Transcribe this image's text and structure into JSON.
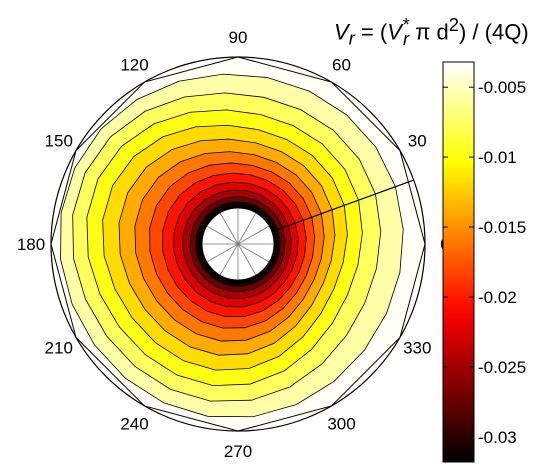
{
  "chart_data": {
    "type": "polar-contour",
    "title": {
      "lhs": "V",
      "lhs_sub": "r",
      "eq": " = (",
      "rhs_v": "V",
      "rhs_sub": "r",
      "rhs_sup": "*",
      "mid": " π d",
      "d_sup": "2",
      "tail": ") / (4Q)"
    },
    "angle_ticks": [
      "0",
      "30",
      "60",
      "90",
      "120",
      "150",
      "180",
      "210",
      "240",
      "270",
      "300",
      "330"
    ],
    "angle_tick_degrees": [
      0,
      30,
      60,
      90,
      120,
      150,
      180,
      210,
      240,
      270,
      300,
      330
    ],
    "colorbar": {
      "ticks": [
        "-0.005",
        "-0.01",
        "-0.015",
        "-0.02",
        "-0.025",
        "-0.03"
      ],
      "tick_values": [
        -0.005,
        -0.01,
        -0.015,
        -0.02,
        -0.025,
        -0.03
      ],
      "range": [
        -0.0318,
        -0.0032
      ],
      "colormap": "hot"
    },
    "contour_levels": [
      -0.0315,
      -0.029,
      -0.027,
      -0.025,
      -0.023,
      -0.021,
      -0.019,
      -0.017,
      -0.015,
      -0.013,
      -0.011,
      -0.009,
      -0.007,
      -0.005
    ],
    "field_range": [
      -0.032,
      -0.0034
    ],
    "grid": "polygonal 12-sided",
    "cut_angle_deg": 20,
    "colors": {
      "outline": "#000000",
      "background": "#ffffff"
    }
  }
}
